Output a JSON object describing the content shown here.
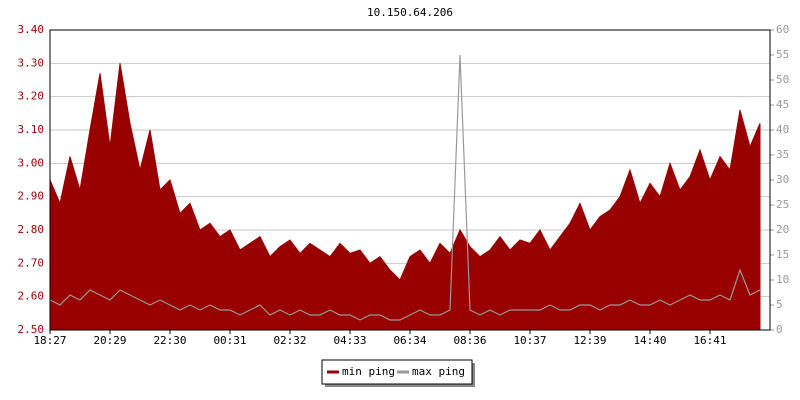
{
  "chart_data": {
    "type": "area-line",
    "title": "10.150.64.206",
    "categories": [
      "18:27",
      null,
      null,
      null,
      null,
      null,
      "20:29",
      null,
      null,
      null,
      null,
      null,
      "22:30",
      null,
      null,
      null,
      null,
      null,
      "00:31",
      null,
      null,
      null,
      null,
      null,
      "02:32",
      null,
      null,
      null,
      null,
      null,
      "04:33",
      null,
      null,
      null,
      null,
      null,
      "06:34",
      null,
      null,
      null,
      null,
      null,
      "08:36",
      null,
      null,
      null,
      null,
      null,
      "10:37",
      null,
      null,
      null,
      null,
      null,
      "12:39",
      null,
      null,
      null,
      null,
      null,
      "14:40",
      null,
      null,
      null,
      null,
      null,
      "16:41",
      null,
      null,
      null,
      null,
      null
    ],
    "series": [
      {
        "name": "min ping",
        "color": "#990000",
        "values": [
          2.95,
          2.88,
          3.02,
          2.92,
          3.1,
          3.27,
          3.05,
          3.3,
          3.12,
          2.98,
          3.1,
          2.92,
          2.95,
          2.85,
          2.88,
          2.8,
          2.82,
          2.78,
          2.8,
          2.74,
          2.76,
          2.78,
          2.72,
          2.75,
          2.77,
          2.73,
          2.76,
          2.74,
          2.72,
          2.76,
          2.73,
          2.74,
          2.7,
          2.72,
          2.68,
          2.65,
          2.72,
          2.74,
          2.7,
          2.76,
          2.73,
          2.8,
          2.75,
          2.72,
          2.74,
          2.78,
          2.74,
          2.77,
          2.76,
          2.8,
          2.74,
          2.78,
          2.82,
          2.88,
          2.8,
          2.84,
          2.86,
          2.9,
          2.98,
          2.88,
          2.94,
          2.9,
          3.0,
          2.92,
          2.96,
          3.04,
          2.95,
          3.02,
          2.98,
          3.16,
          3.05,
          3.12
        ]
      },
      {
        "name": "max ping",
        "color": "#999999",
        "axis": "y2",
        "values": [
          6,
          5,
          7,
          6,
          8,
          7,
          6,
          8,
          7,
          6,
          5,
          6,
          5,
          4,
          5,
          4,
          5,
          4,
          4,
          3,
          4,
          5,
          3,
          4,
          3,
          4,
          3,
          3,
          4,
          3,
          3,
          2,
          3,
          3,
          2,
          2,
          3,
          4,
          3,
          3,
          4,
          55,
          4,
          3,
          4,
          3,
          4,
          4,
          4,
          4,
          5,
          4,
          4,
          5,
          5,
          4,
          5,
          5,
          6,
          5,
          5,
          6,
          5,
          6,
          7,
          6,
          6,
          7,
          6,
          12,
          7,
          8
        ]
      }
    ],
    "ylim": [
      2.5,
      3.4
    ],
    "yticks": [
      {
        "value": 2.5,
        "label": "2.50"
      },
      {
        "value": 2.6,
        "label": "2.60"
      },
      {
        "value": 2.7,
        "label": "2.70"
      },
      {
        "value": 2.8,
        "label": "2.80"
      },
      {
        "value": 2.9,
        "label": "2.90"
      },
      {
        "value": 3.0,
        "label": "3.00"
      },
      {
        "value": 3.1,
        "label": "3.10"
      },
      {
        "value": 3.2,
        "label": "3.20"
      },
      {
        "value": 3.3,
        "label": "3.30"
      },
      {
        "value": 3.4,
        "label": "3.40"
      }
    ],
    "y2lim": [
      0,
      60
    ],
    "y2ticks": [
      0,
      5,
      10,
      15,
      20,
      25,
      30,
      35,
      40,
      45,
      50,
      55,
      60
    ],
    "grid": true,
    "legend": "bottom"
  }
}
